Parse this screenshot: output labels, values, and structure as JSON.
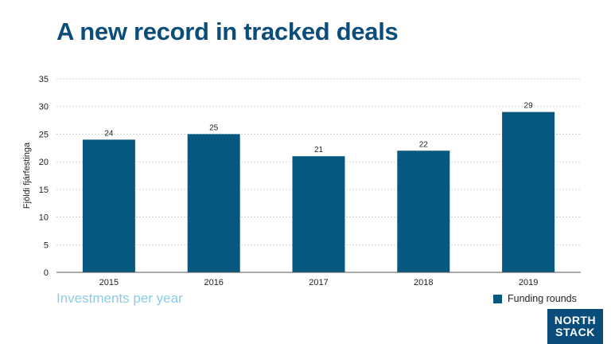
{
  "title": "A new record in tracked deals",
  "subtitle": "Investments per year",
  "logo": {
    "line1": "NORTH",
    "line2": "STACK"
  },
  "colors": {
    "title": "#0b4d7a",
    "bar": "#07587f",
    "subtitle": "#8ccde6",
    "logo_bg": "#0b4d7a"
  },
  "chart_data": {
    "type": "bar",
    "categories": [
      "2015",
      "2016",
      "2017",
      "2018",
      "2019"
    ],
    "series": [
      {
        "name": "Funding rounds",
        "values": [
          24,
          25,
          21,
          22,
          29
        ]
      }
    ],
    "ylabel": "Fjöldi fjárfestinga",
    "xlabel": "",
    "ylim": [
      0,
      35
    ],
    "yticks": [
      0,
      5,
      10,
      15,
      20,
      25,
      30,
      35
    ],
    "grid": true,
    "data_labels": true,
    "legend": {
      "position": "bottom-right"
    }
  }
}
